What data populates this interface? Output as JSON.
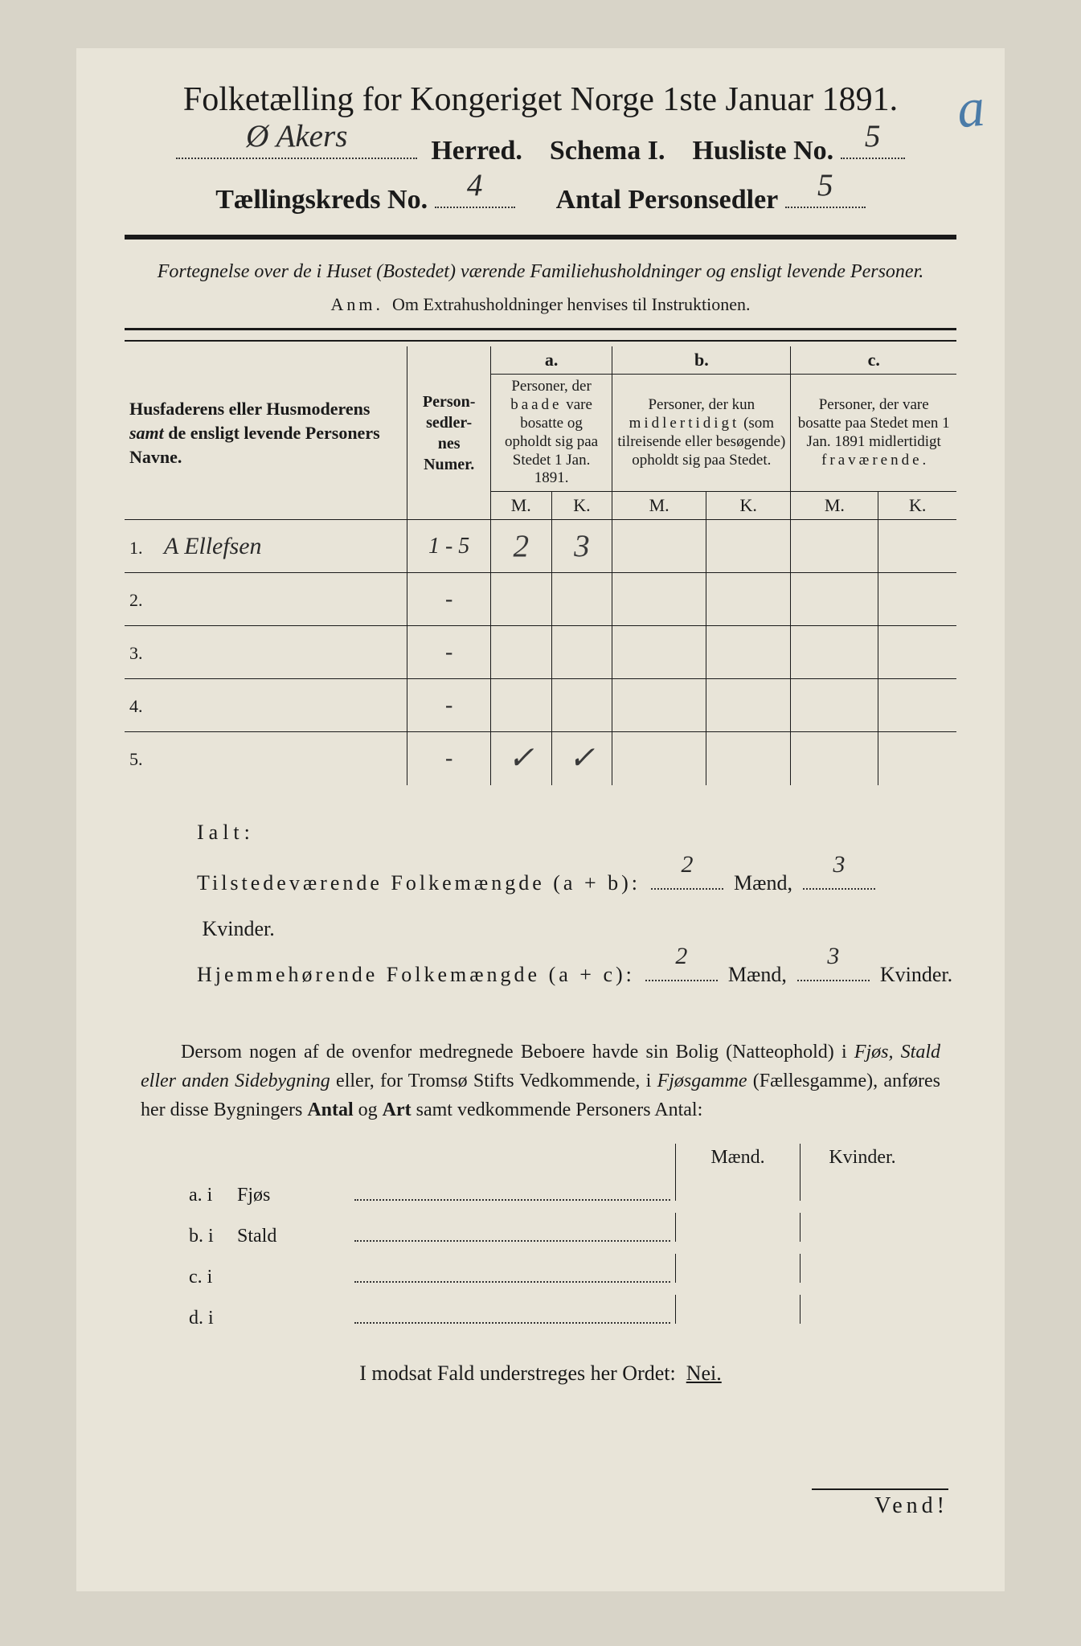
{
  "cornerMark": "a",
  "title": "Folketælling for Kongeriget Norge 1ste Januar 1891.",
  "header": {
    "herred_hw": "Ø Akers",
    "herred_label": "Herred.",
    "schema_label": "Schema I.",
    "husliste_label": "Husliste No.",
    "husliste_hw": "5",
    "kreds_label": "Tællingskreds No.",
    "kreds_hw": "4",
    "personsedler_label": "Antal Personsedler",
    "personsedler_hw": "5"
  },
  "instruction": "Fortegnelse over de i Huset (Bostedet) værende Familiehusholdninger og ensligt levende Personer.",
  "anm_label": "Anm.",
  "anm_text": "Om Extrahusholdninger henvises til Instruktionen.",
  "table": {
    "names_head": "Husfaderens eller Husmoderens <span class=\"em bold\">samt</span> de ensligt levende Personers Navne.",
    "numer_head": "Person-<br>sedler-<br>nes<br>Numer.",
    "cols": {
      "a": {
        "letter": "a.",
        "text": "Personer, der <span class=\"spaced\">baade</span> vare bosatte og opholdt sig paa Stedet 1 Jan. 1891."
      },
      "b": {
        "letter": "b.",
        "text": "Personer, der kun <span class=\"spaced\">midlertidigt</span> (som tilreisende eller besøgende) opholdt sig paa Stedet."
      },
      "c": {
        "letter": "c.",
        "text": "Personer, der vare bosatte paa Stedet men 1 Jan. 1891 midlertidigt <span class=\"spaced\">fraværende</span>."
      }
    },
    "mk": {
      "m": "M.",
      "k": "K."
    },
    "rows": [
      {
        "n": "1.",
        "name_hw": "A Ellefsen",
        "numer": "1 - 5",
        "a_m": "2",
        "a_k": "3",
        "b_m": "",
        "b_k": "",
        "c_m": "",
        "c_k": ""
      },
      {
        "n": "2.",
        "name_hw": "",
        "numer": "-",
        "a_m": "",
        "a_k": "",
        "b_m": "",
        "b_k": "",
        "c_m": "",
        "c_k": ""
      },
      {
        "n": "3.",
        "name_hw": "",
        "numer": "-",
        "a_m": "",
        "a_k": "",
        "b_m": "",
        "b_k": "",
        "c_m": "",
        "c_k": ""
      },
      {
        "n": "4.",
        "name_hw": "",
        "numer": "-",
        "a_m": "",
        "a_k": "",
        "b_m": "",
        "b_k": "",
        "c_m": "",
        "c_k": ""
      },
      {
        "n": "5.",
        "name_hw": "",
        "numer": "-",
        "a_m": "✓",
        "a_k": "✓",
        "b_m": "",
        "b_k": "",
        "c_m": "",
        "c_k": ""
      }
    ]
  },
  "ialt": {
    "label": "Ialt:",
    "line1_pre": "Tilstedeværende Folkemængde (a + b):",
    "line1_m": "2",
    "line1_mlabel": "Mænd,",
    "line1_k": "3",
    "line1_klabel": "Kvinder.",
    "line2_pre": "Hjemmehørende Folkemængde (a + c):",
    "line2_m": "2",
    "line2_k": "3"
  },
  "para": "Dersom nogen af de ovenfor medregnede Beboere havde sin Bolig (Natteophold) i <span class=\"em\">Fjøs, Stald eller anden Sidebygning</span> eller, for Tromsø Stifts Vedkommende, i <span class=\"em\">Fjøsgamme</span> (Fællesgamme), anføres her disse Bygningers <b>Antal</b> og <b>Art</b> samt vedkommende Personers Antal:",
  "outbuildings": {
    "mk_m": "Mænd.",
    "mk_k": "Kvinder.",
    "rows": [
      {
        "l": "a.  i",
        "mid": "Fjøs"
      },
      {
        "l": "b.  i",
        "mid": "Stald"
      },
      {
        "l": "c.  i",
        "mid": ""
      },
      {
        "l": "d.  i",
        "mid": ""
      }
    ]
  },
  "nei_line_pre": "I modsat Fald understreges her Ordet:",
  "nei_word": "Nei.",
  "vend": "Vend!"
}
